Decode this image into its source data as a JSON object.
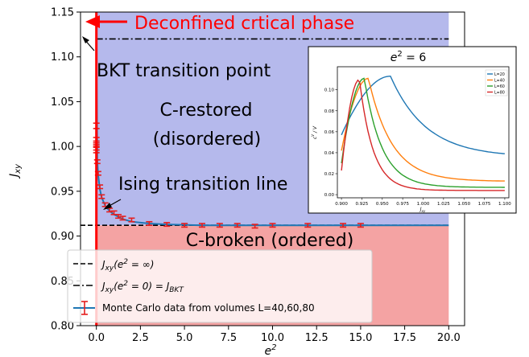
{
  "chart_data": [
    {
      "type": "scatter",
      "role": "main phase diagram",
      "xlabel": "e^2",
      "ylabel": "J_xy",
      "xlim": [
        -0.9,
        20.9
      ],
      "ylim": [
        0.8,
        1.15
      ],
      "xticks": [
        0.0,
        2.5,
        5.0,
        7.5,
        10.0,
        12.5,
        15.0,
        17.5,
        20.0
      ],
      "xtick_labels": [
        "0.0",
        "2.5",
        "5.0",
        "7.5",
        "10.0",
        "12.5",
        "15.0",
        "17.5",
        "20.0"
      ],
      "yticks": [
        0.8,
        0.85,
        0.9,
        0.95,
        1.0,
        1.05,
        1.1,
        1.15
      ],
      "ytick_labels": [
        "0.80",
        "0.85",
        "0.90",
        "0.95",
        "1.00",
        "1.05",
        "1.10",
        "1.15"
      ],
      "grid": false,
      "legend_position": "lower-left",
      "regions": [
        {
          "name": "C-restored (disordered)",
          "color": "#b5b9ec"
        },
        {
          "name": "C-broken (ordered)",
          "color": "#f4a3a3"
        }
      ],
      "reference_lines": [
        {
          "name": "J_xy(e^2 = ∞)",
          "y": 0.912,
          "style": "dashed"
        },
        {
          "name": "J_xy(e^2 = 0) = J_BKT",
          "y": 1.12,
          "style": "dashdot"
        }
      ],
      "series": [
        {
          "name": "Monte Carlo data from volumes L=40,60,80",
          "x": [
            0.0,
            0.0,
            0.0,
            0.0,
            0.0,
            0.05,
            0.1,
            0.2,
            0.3,
            0.5,
            0.75,
            1.0,
            1.25,
            1.5,
            2.0,
            3.0,
            4.0,
            5.0,
            6.0,
            7.0,
            8.0,
            9.0,
            10.0,
            12.0,
            14.0,
            15.0
          ],
          "y": [
            1.023,
            1.007,
            1.003,
            0.999,
            0.996,
            0.983,
            0.97,
            0.955,
            0.944,
            0.935,
            0.929,
            0.926,
            0.922,
            0.92,
            0.918,
            0.914,
            0.913,
            0.912,
            0.912,
            0.912,
            0.912,
            0.911,
            0.912,
            0.912,
            0.912,
            0.912
          ],
          "err": [
            0.003,
            0.003,
            0.003,
            0.003,
            0.003,
            0.002,
            0.002,
            0.002,
            0.002,
            0.002,
            0.002,
            0.002,
            0.002,
            0.002,
            0.002,
            0.002,
            0.002,
            0.002,
            0.002,
            0.002,
            0.002,
            0.002,
            0.002,
            0.002,
            0.002,
            0.002
          ],
          "color": "#e51e1e",
          "line_color": "#1f77b4"
        }
      ],
      "fit_curve": {
        "x": [
          0.0,
          0.05,
          0.1,
          0.2,
          0.3,
          0.5,
          0.75,
          1.0,
          1.5,
          2.0,
          3.0,
          4.0,
          6.0,
          8.0,
          10.0,
          14.0,
          20.0
        ],
        "y": [
          1.12,
          0.985,
          0.968,
          0.952,
          0.943,
          0.934,
          0.928,
          0.924,
          0.919,
          0.916,
          0.914,
          0.913,
          0.912,
          0.912,
          0.912,
          0.912,
          0.912
        ],
        "color": "#1f77b4"
      },
      "critical_line_color": "#ff0000"
    },
    {
      "type": "line",
      "role": "inset",
      "title": "e^2 = 6",
      "xlabel": "J_xy",
      "ylabel": "c^V / V",
      "xlim": [
        0.895,
        1.105
      ],
      "ylim": [
        -0.003,
        0.122
      ],
      "xticks": [
        0.9,
        0.925,
        0.95,
        0.975,
        1.0,
        1.025,
        1.05,
        1.075,
        1.1
      ],
      "xtick_labels": [
        "0.900",
        "0.925",
        "0.950",
        "0.975",
        "1.000",
        "1.025",
        "1.050",
        "1.075",
        "1.100"
      ],
      "yticks": [
        0.0,
        0.02,
        0.04,
        0.06,
        0.08,
        0.1
      ],
      "ytick_labels": [
        "0.00",
        "0.02",
        "0.04",
        "0.06",
        "0.08",
        "0.10"
      ],
      "grid": false,
      "legend_position": "top-right",
      "series": [
        {
          "name": "L=20",
          "color": "#1f77b4",
          "peak": {
            "x": 0.96,
            "y": 0.113
          },
          "x_start": 0.9,
          "y_start": 0.057,
          "y_end": 0.039,
          "left_width": 0.06,
          "right_width": 0.1
        },
        {
          "name": "L=40",
          "color": "#ff7f0e",
          "peak": {
            "x": 0.933,
            "y": 0.111
          },
          "x_start": 0.9,
          "y_start": 0.042,
          "y_end": 0.013,
          "left_width": 0.033,
          "right_width": 0.055
        },
        {
          "name": "L=60",
          "color": "#2ca02c",
          "peak": {
            "x": 0.928,
            "y": 0.111
          },
          "x_start": 0.9,
          "y_start": 0.03,
          "y_end": 0.007,
          "left_width": 0.028,
          "right_width": 0.04
        },
        {
          "name": "L=80",
          "color": "#d62728",
          "peak": {
            "x": 0.922,
            "y": 0.11
          },
          "x_start": 0.9,
          "y_start": 0.023,
          "y_end": 0.004,
          "left_width": 0.022,
          "right_width": 0.03
        }
      ]
    }
  ],
  "annotations": {
    "deconfined": "Deconfined crtical phase",
    "bkt": "BKT transition point",
    "c_restored_1": "C-restored",
    "c_restored_2": "(disordered)",
    "ising": "Ising transition line",
    "c_broken": "C-broken (ordered)"
  },
  "axis_titles": {
    "main_y": "J",
    "main_y_sub": "xy",
    "main_x": "e",
    "main_x_sup": "2",
    "inset_title": "e",
    "inset_title_sup": "2",
    "inset_title_rest": " = 6",
    "inset_y": "c",
    "inset_y_sup": "V",
    "inset_y_rest": " / V",
    "inset_x": "J",
    "inset_x_sub": "xy"
  },
  "legend": {
    "item1_a": "J",
    "item1_sub": "xy",
    "item1_b": "(e",
    "item1_sup": "2",
    "item1_c": " = ∞)",
    "item2_a": "J",
    "item2_sub": "xy",
    "item2_b": "(e",
    "item2_sup": "2",
    "item2_c": " = 0) = J",
    "item2_sub2": "BKT",
    "item3": "Monte Carlo data from volumes L=40,60,80"
  }
}
